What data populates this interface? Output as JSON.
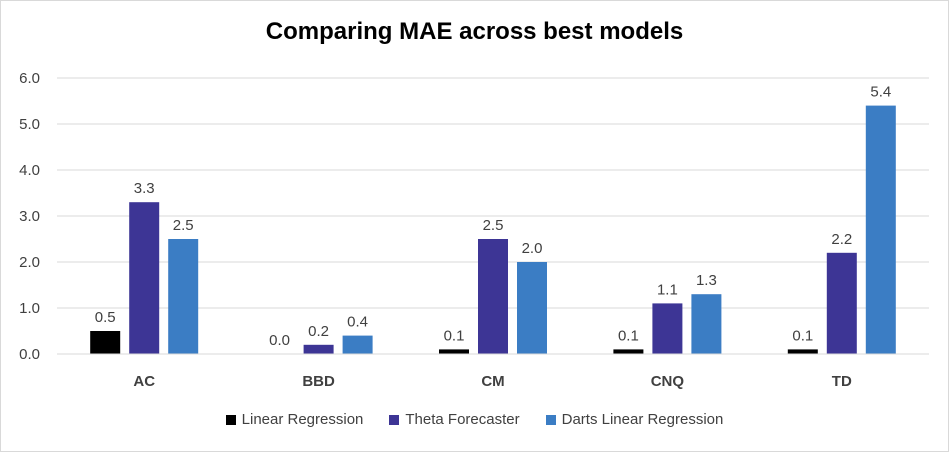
{
  "chart_data": {
    "type": "bar",
    "title": "Comparing MAE across best models",
    "categories": [
      "AC",
      "BBD",
      "CM",
      "CNQ",
      "TD"
    ],
    "series": [
      {
        "name": "Linear Regression",
        "color": "#000000",
        "values": [
          0.5,
          0.0,
          0.1,
          0.1,
          0.1
        ],
        "labels": [
          "0.5",
          "0.0",
          "0.1",
          "0.1",
          "0.1"
        ]
      },
      {
        "name": "Theta Forecaster",
        "color": "#3d3595",
        "values": [
          3.3,
          0.2,
          2.5,
          1.1,
          2.2
        ],
        "labels": [
          "3.3",
          "0.2",
          "2.5",
          "1.1",
          "2.2"
        ]
      },
      {
        "name": "Darts Linear Regression",
        "color": "#3b7dc4",
        "values": [
          2.5,
          0.4,
          2.0,
          1.3,
          5.4
        ],
        "labels": [
          "2.5",
          "0.4",
          "2.0",
          "1.3",
          "5.4"
        ]
      }
    ],
    "yticks": [
      "0.0",
      "1.0",
      "2.0",
      "3.0",
      "4.0",
      "5.0",
      "6.0"
    ],
    "ylim": [
      0,
      6
    ],
    "grid": true,
    "legend_position": "bottom"
  }
}
